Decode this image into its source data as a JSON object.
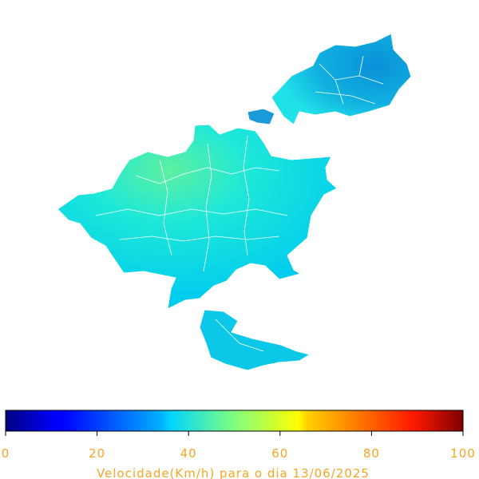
{
  "colorbar": {
    "label": "Velocidade(Km/h) para o dia 13/06/2025",
    "lim": [
      0,
      100
    ],
    "ticks": [
      0,
      20,
      40,
      60,
      80,
      100
    ]
  }
}
